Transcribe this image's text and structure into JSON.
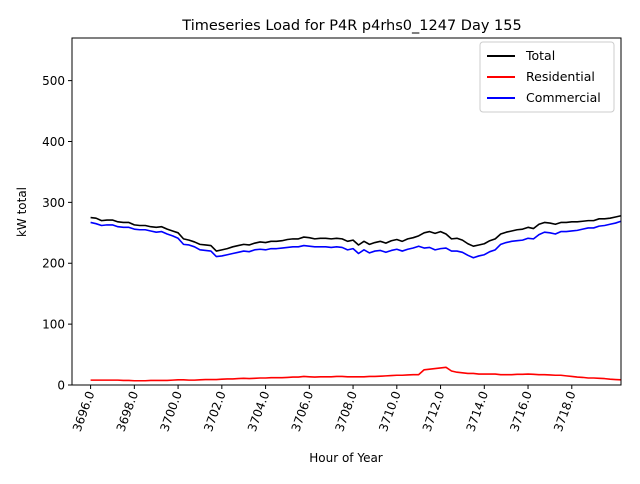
{
  "chart_data": {
    "type": "line",
    "title": "Timeseries Load for P4R p4rhs0_1247  Day 155",
    "xlabel": "Hour of Year",
    "ylabel": "kW total",
    "xlim": [
      3695.15,
      3720.25
    ],
    "ylim": [
      0,
      570
    ],
    "xticks": [
      3696,
      3698,
      3700,
      3702,
      3704,
      3706,
      3708,
      3710,
      3712,
      3714,
      3716,
      3718
    ],
    "xtick_labels": [
      "3696.0",
      "3698.0",
      "3700.0",
      "3702.0",
      "3704.0",
      "3706.0",
      "3708.0",
      "3710.0",
      "3712.0",
      "3714.0",
      "3716.0",
      "3718.0"
    ],
    "yticks": [
      0,
      100,
      200,
      300,
      400,
      500
    ],
    "ytick_labels": [
      "0",
      "100",
      "200",
      "300",
      "400",
      "500"
    ],
    "legend_position": "top-right",
    "x_start": 3696.0,
    "x_step": 0.25,
    "series": [
      {
        "name": "Total",
        "color": "#000000",
        "values": [
          275,
          274,
          270,
          271,
          271,
          268,
          267,
          267,
          263,
          262,
          262,
          260,
          259,
          260,
          256,
          253,
          250,
          240,
          238,
          235,
          231,
          230,
          229,
          220,
          222,
          224,
          227,
          229,
          231,
          230,
          233,
          235,
          234,
          236,
          236,
          237,
          239,
          240,
          240,
          243,
          242,
          240,
          241,
          241,
          240,
          241,
          240,
          236,
          238,
          230,
          236,
          231,
          234,
          236,
          233,
          237,
          239,
          236,
          240,
          242,
          245,
          250,
          252,
          249,
          252,
          248,
          240,
          241,
          238,
          232,
          228,
          230,
          232,
          237,
          240,
          248,
          251,
          253,
          255,
          256,
          259,
          257,
          264,
          267,
          266,
          264,
          267,
          267,
          268,
          268,
          269,
          270,
          270,
          273,
          273,
          274,
          276,
          278
        ]
      },
      {
        "name": "Residential",
        "color": "#ff0000",
        "values": [
          8,
          8,
          8,
          8,
          8,
          8,
          7.5,
          7.5,
          7,
          7,
          7,
          7.5,
          7.5,
          7.5,
          7.5,
          8,
          8.5,
          8.5,
          8,
          8,
          8.5,
          9,
          9,
          9,
          9.5,
          10,
          10,
          10.5,
          11,
          10.5,
          11,
          11.5,
          11.5,
          12,
          12,
          12,
          12.5,
          13,
          13,
          14,
          13.5,
          13,
          13.5,
          13.5,
          13.5,
          14,
          14,
          13.5,
          13.5,
          13.5,
          13.5,
          14,
          14,
          14.5,
          15,
          15.5,
          16,
          16,
          16.5,
          17,
          17,
          25,
          26,
          27,
          28,
          29,
          23,
          21,
          20,
          19,
          19,
          18,
          18,
          18,
          18,
          17,
          17,
          17,
          17.5,
          17.5,
          18,
          17.5,
          17,
          17,
          16.5,
          16,
          16,
          15,
          14,
          13,
          12.5,
          11.5,
          11.5,
          11,
          10.5,
          9.5,
          9,
          8.5
        ]
      },
      {
        "name": "Commercial",
        "color": "#0000ff",
        "values": [
          267,
          265,
          262,
          263,
          263,
          260,
          259,
          259,
          256,
          255,
          255,
          253,
          251,
          252,
          248,
          245,
          241,
          231,
          230,
          227,
          222,
          221,
          220,
          211,
          212,
          214,
          216,
          218,
          220,
          219,
          222,
          223,
          222,
          224,
          224,
          225,
          226,
          227,
          227,
          229,
          228,
          227,
          227,
          227,
          226,
          227,
          226,
          222,
          224,
          216,
          222,
          217,
          220,
          221,
          218,
          221,
          223,
          220,
          223,
          225,
          228,
          225,
          226,
          222,
          224,
          225,
          220,
          220,
          218,
          213,
          209,
          212,
          214,
          219,
          222,
          231,
          234,
          236,
          237,
          238,
          241,
          240,
          247,
          251,
          250,
          248,
          252,
          252,
          253,
          254,
          256,
          258,
          258,
          261,
          262,
          264,
          266,
          269
        ]
      }
    ]
  }
}
